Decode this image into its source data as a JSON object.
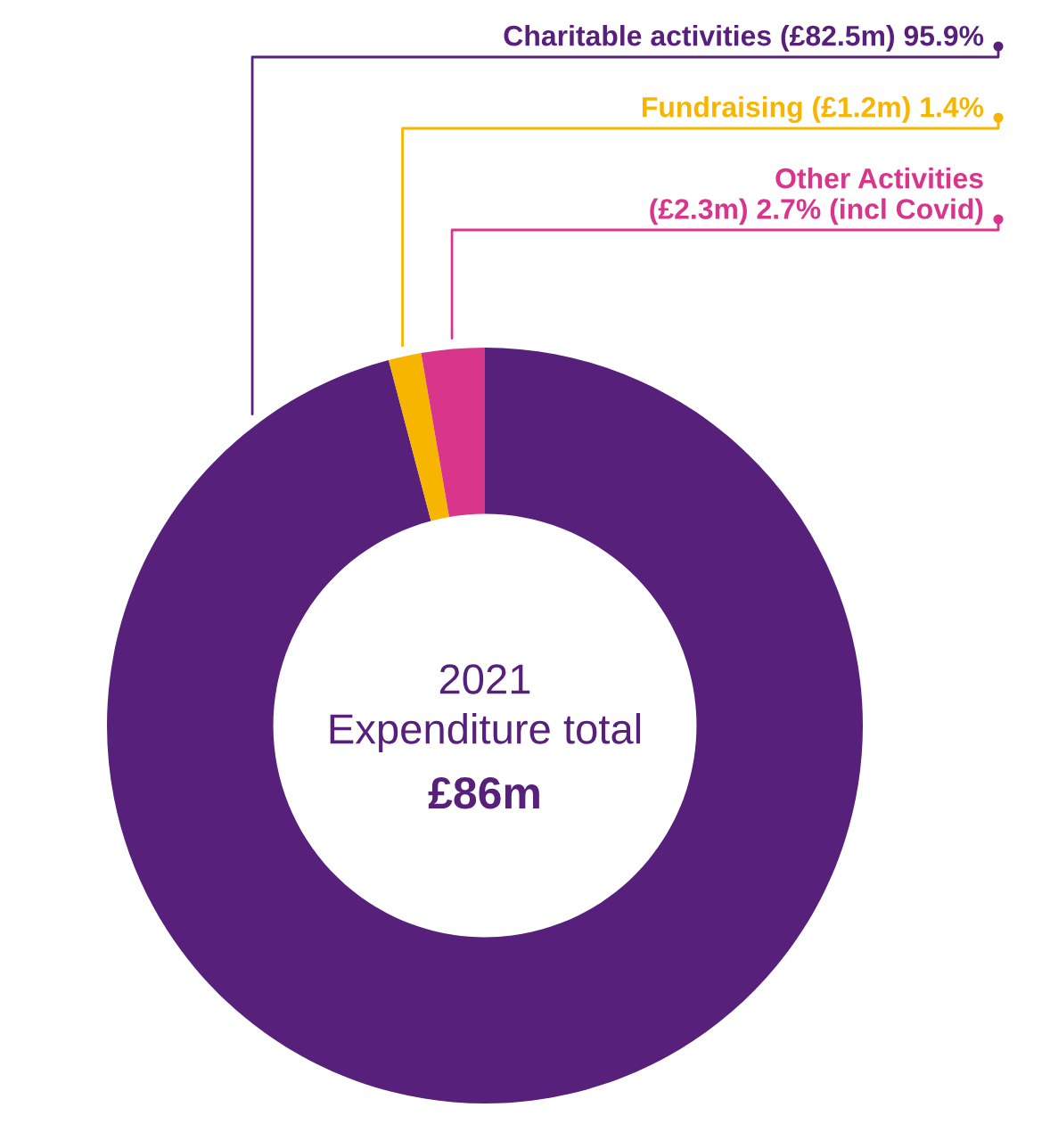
{
  "chart_data": {
    "type": "donut",
    "categories": [
      "Charitable activities (£82.5m) 95.9%",
      "Fundraising (£1.2m) 1.4%",
      "Other Activities\n(£2.3m) 2.7% (incl Covid)"
    ],
    "values": [
      95.9,
      1.4,
      2.7
    ],
    "colors": [
      "#57207a",
      "#f7b500",
      "#d9368b"
    ],
    "annotations": [
      "2021",
      "Expenditure total",
      "£86m"
    ],
    "legend": "top right"
  }
}
